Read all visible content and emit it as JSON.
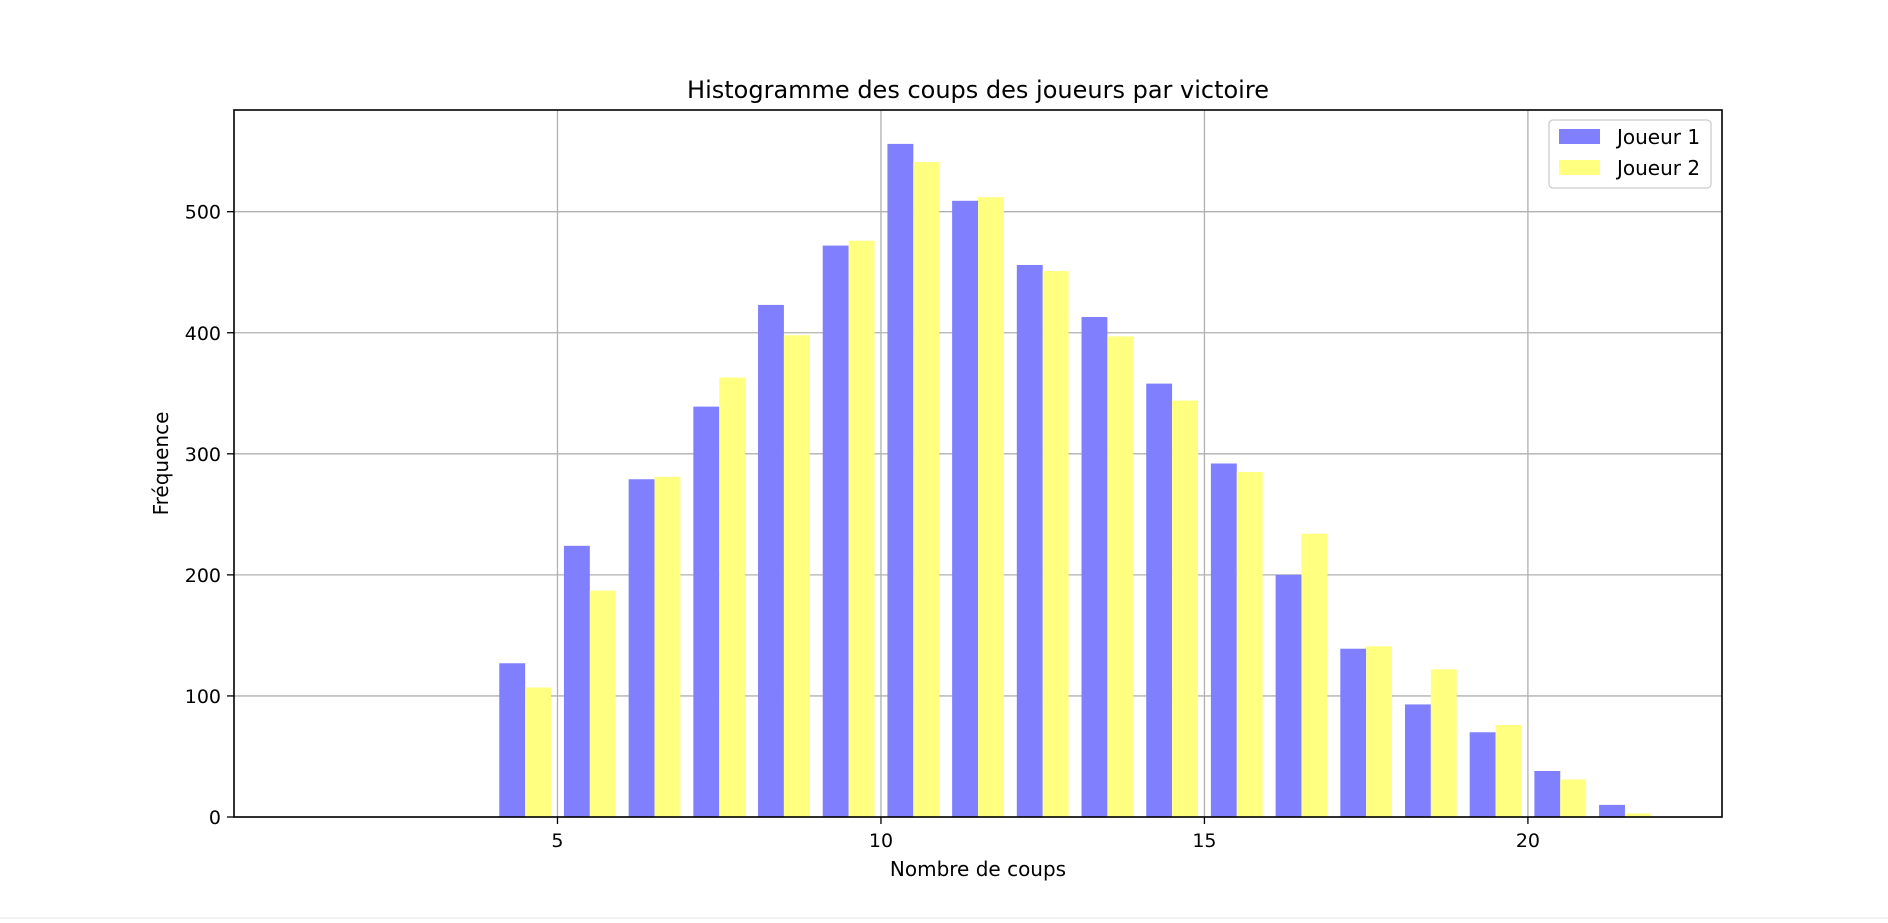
{
  "chart_data": {
    "type": "bar",
    "title": "Histogramme des coups des joueurs par victoire",
    "xlabel": "Nombre de coups",
    "ylabel": "Fréquence",
    "xlim": [
      0,
      23
    ],
    "ylim": [
      0,
      584
    ],
    "xticks": [
      5,
      10,
      15,
      20
    ],
    "yticks": [
      0,
      100,
      200,
      300,
      400,
      500
    ],
    "grid": true,
    "legend_position": "top-right",
    "bar_width": 0.4,
    "x": [
      4.5,
      5.5,
      6.5,
      7.5,
      8.5,
      9.5,
      10.5,
      11.5,
      12.5,
      13.5,
      14.5,
      15.5,
      16.5,
      17.5,
      18.5,
      19.5,
      20.5,
      21.5
    ],
    "series": [
      {
        "name": "Joueur 1",
        "color": "#8080ff",
        "values": [
          127,
          224,
          279,
          339,
          423,
          472,
          556,
          509,
          456,
          413,
          358,
          292,
          200,
          139,
          93,
          70,
          38,
          10
        ]
      },
      {
        "name": "Joueur 2",
        "color": "#ffff80",
        "values": [
          107,
          187,
          281,
          363,
          398,
          476,
          541,
          512,
          451,
          397,
          344,
          285,
          234,
          141,
          122,
          76,
          31,
          3
        ]
      }
    ]
  }
}
